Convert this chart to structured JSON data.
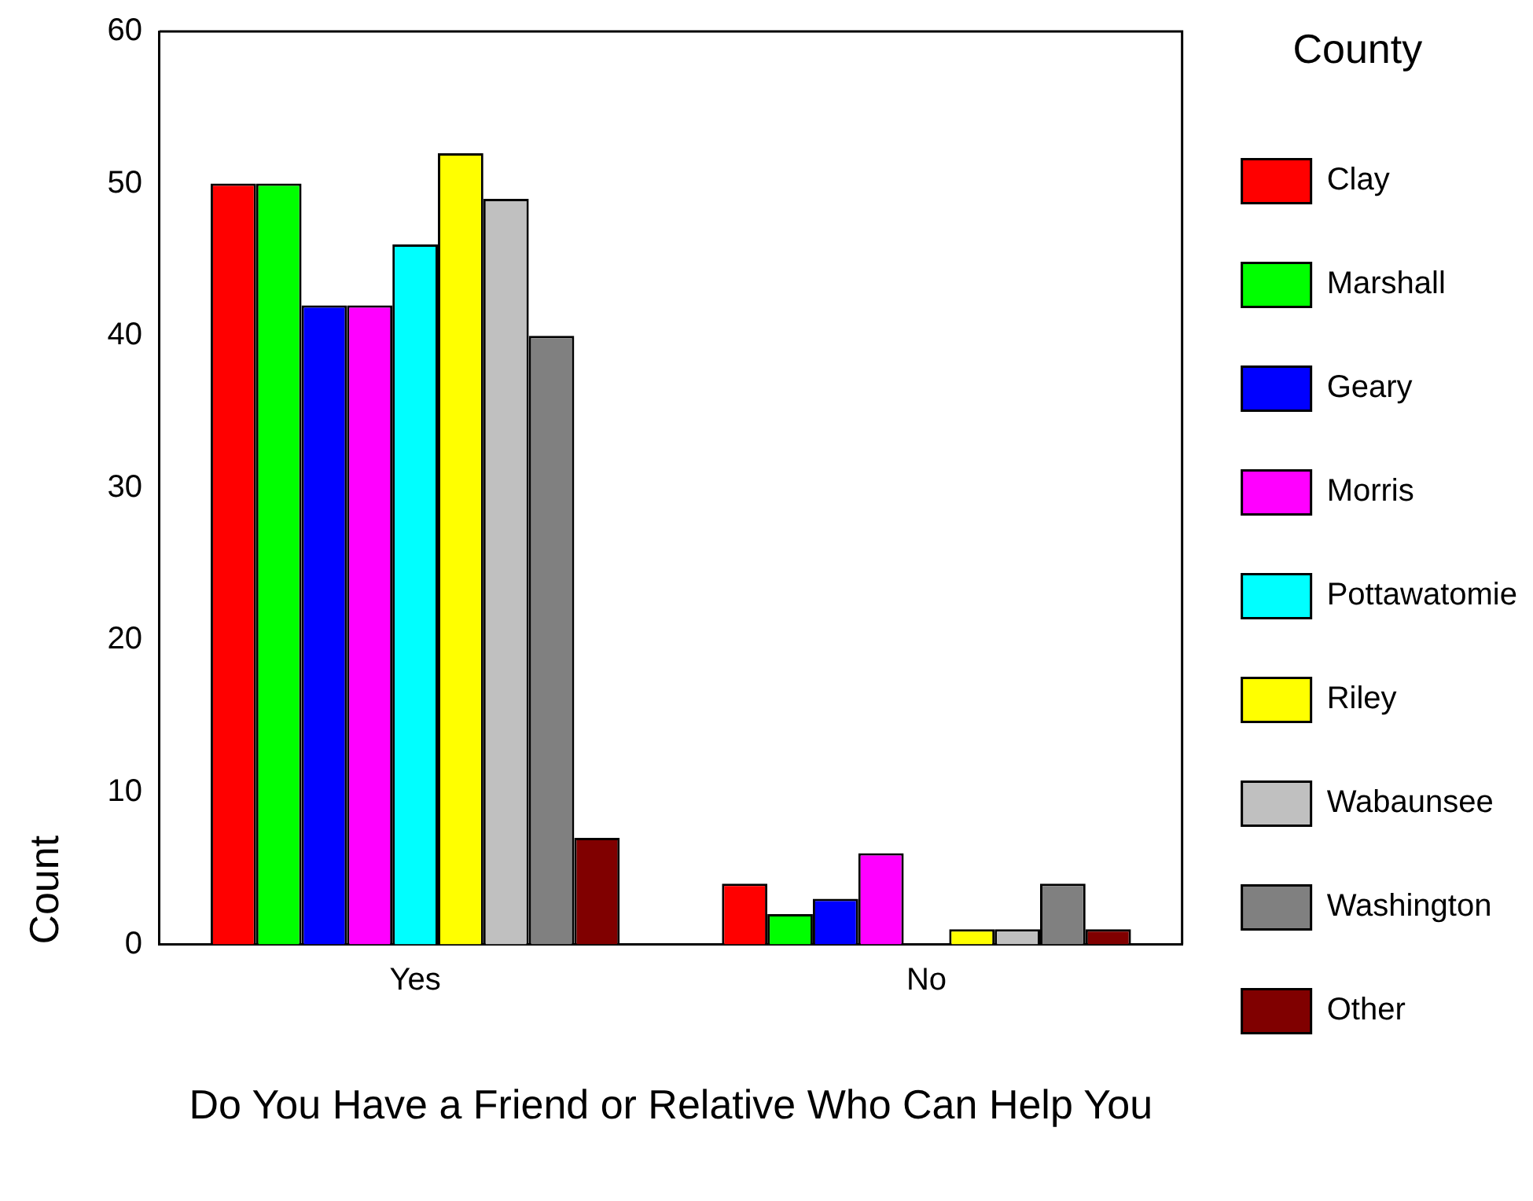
{
  "chart_data": {
    "type": "bar",
    "xlabel": "Do You Have a Friend or Relative Who Can Help You",
    "ylabel": "Count",
    "legend_title": "County",
    "categories": [
      "Yes",
      "No"
    ],
    "series": [
      {
        "name": "Clay",
        "color": "#ff0000",
        "values": [
          50,
          4
        ]
      },
      {
        "name": "Marshall",
        "color": "#00ff00",
        "values": [
          50,
          2
        ]
      },
      {
        "name": "Geary",
        "color": "#0000ff",
        "values": [
          42,
          3
        ]
      },
      {
        "name": "Morris",
        "color": "#ff00ff",
        "values": [
          42,
          6
        ]
      },
      {
        "name": "Pottawatomie",
        "color": "#00ffff",
        "values": [
          46,
          0
        ]
      },
      {
        "name": "Riley",
        "color": "#ffff00",
        "values": [
          52,
          1
        ]
      },
      {
        "name": "Wabaunsee",
        "color": "#c0c0c0",
        "values": [
          49,
          1
        ]
      },
      {
        "name": "Washington",
        "color": "#808080",
        "values": [
          40,
          4
        ]
      },
      {
        "name": "Other",
        "color": "#800000",
        "values": [
          7,
          1
        ]
      }
    ],
    "ylim": [
      0,
      60
    ],
    "yticks": [
      0,
      10,
      20,
      30,
      40,
      50,
      60
    ],
    "grid": false,
    "legend": "right"
  }
}
